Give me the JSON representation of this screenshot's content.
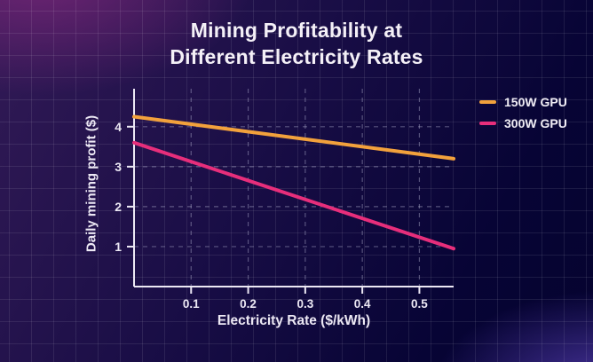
{
  "title": {
    "line1": "Mining Profitability at",
    "line2": "Different Electricity Rates"
  },
  "theme": {
    "background_glow_top_left": "#6e2473",
    "background_glow_bottom_right": "#4a35a0",
    "background_dark": "#05032f",
    "axis_color": "#ece8f4",
    "text_color": "#f4f0f7",
    "plot_gridline_color": "rgba(185,185,215,0.42)"
  },
  "chart_data": {
    "type": "line",
    "title": "Mining Profitability at Different Electricity Rates",
    "xlabel": "Electricity Rate ($/kWh)",
    "ylabel": "Daily mining profit ($)",
    "xlim": [
      0,
      0.56
    ],
    "ylim": [
      0,
      4.95
    ],
    "xticks": [
      0.1,
      0.2,
      0.3,
      0.4,
      0.5
    ],
    "yticks": [
      1,
      2,
      3,
      4
    ],
    "grid": true,
    "grid_style": "dashed",
    "legend_position": "upper right outside plot",
    "series": [
      {
        "name": "150W GPU",
        "color": "#F2A13C",
        "x": [
          0,
          0.56
        ],
        "y": [
          4.25,
          3.2
        ]
      },
      {
        "name": "300W GPU",
        "color": "#E72E7B",
        "x": [
          0,
          0.56
        ],
        "y": [
          3.6,
          0.95
        ]
      }
    ]
  }
}
